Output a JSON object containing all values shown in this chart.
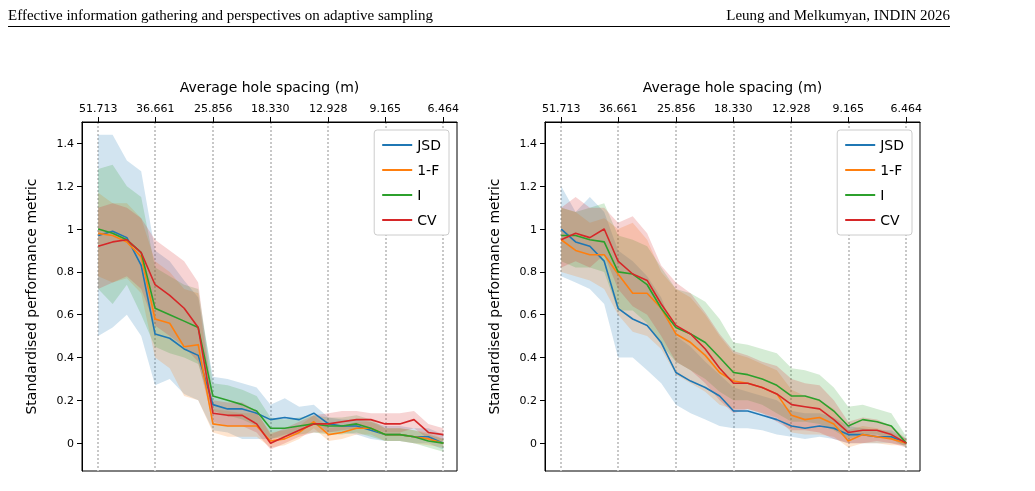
{
  "chart_data": [
    {
      "type": "line",
      "annotations": [
        "Effective information gathering and perspectives on adaptive sampling",
        "Leung and Melkumyan, INDIN 2026"
      ],
      "xlabel": "Average hole spacing (m)",
      "ylabel": "Standardised performance metric",
      "x": [
        51.7,
        47.4,
        43.5,
        39.9,
        36.7,
        33.6,
        30.8,
        28.3,
        25.9,
        23.7,
        21.7,
        19.9,
        18.3,
        16.8,
        15.4,
        14.1,
        12.9,
        11.9,
        10.9,
        10.0,
        9.17,
        8.4,
        7.71,
        7.07,
        6.46
      ],
      "xlim": [
        57,
        5.95
      ],
      "log": "x",
      "xticks": [
        51.713,
        36.661,
        25.856,
        {
          "value": 18.33,
          "label": "18.330"
        },
        12.928,
        9.165,
        6.464
      ],
      "ylim": [
        -0.13,
        1.5
      ],
      "yticks": [
        0,
        0.2,
        0.4,
        0.6,
        0.8,
        1,
        1.2,
        1.4
      ],
      "grid": "x",
      "legend": "top right",
      "marker": "none",
      "series": [
        {
          "name": "JSD",
          "color": "#1f77b4",
          "values": [
            0.97,
            0.99,
            0.96,
            0.83,
            0.51,
            0.49,
            0.44,
            0.41,
            0.18,
            0.16,
            0.16,
            0.14,
            0.11,
            0.12,
            0.11,
            0.14,
            0.09,
            0.08,
            0.08,
            0.06,
            0.04,
            0.04,
            0.03,
            0.03,
            0
          ],
          "lower": [
            0.5,
            0.54,
            0.6,
            0.5,
            0.27,
            0.3,
            0.23,
            0.2,
            0.06,
            0.05,
            0.02,
            0.02,
            0.02,
            0.04,
            0.05,
            0.1,
            0.05,
            0.05,
            0.04,
            0.02,
            0.01,
            0.01,
            0,
            0,
            -0.03
          ],
          "upper": [
            1.44,
            1.44,
            1.32,
            1.27,
            0.9,
            0.85,
            0.76,
            0.68,
            0.31,
            0.3,
            0.28,
            0.26,
            0.18,
            0.21,
            0.17,
            0.18,
            0.12,
            0.11,
            0.11,
            0.1,
            0.08,
            0.08,
            0.07,
            0.07,
            0.04
          ]
        },
        {
          "name": "1-F",
          "color": "#ff7f0e",
          "values": [
            0.98,
            0.97,
            0.94,
            0.87,
            0.58,
            0.56,
            0.45,
            0.46,
            0.09,
            0.08,
            0.08,
            0.08,
            0.01,
            0.02,
            0.05,
            0.1,
            0.04,
            0.05,
            0.07,
            0.07,
            0.04,
            0.04,
            0.03,
            0.02,
            0
          ],
          "lower": [
            0.78,
            0.75,
            0.77,
            0.7,
            0.4,
            0.35,
            0.22,
            0.2,
            0.05,
            0.03,
            0.03,
            0.03,
            -0.02,
            -0.01,
            0.02,
            0.07,
            0.01,
            0.02,
            0.04,
            0.04,
            0.01,
            0.01,
            0,
            -0.01,
            -0.02
          ],
          "upper": [
            1.17,
            1.12,
            1.12,
            1.05,
            0.85,
            0.8,
            0.72,
            0.7,
            0.16,
            0.15,
            0.14,
            0.14,
            0.05,
            0.06,
            0.08,
            0.13,
            0.07,
            0.08,
            0.1,
            0.1,
            0.07,
            0.07,
            0.06,
            0.05,
            0.02
          ]
        },
        {
          "name": "I",
          "color": "#2ca02c",
          "values": [
            1,
            0.98,
            0.95,
            0.89,
            0.63,
            0.6,
            0.57,
            0.54,
            0.22,
            0.2,
            0.18,
            0.15,
            0.07,
            0.07,
            0.08,
            0.09,
            0.08,
            0.08,
            0.09,
            0.07,
            0.04,
            0.04,
            0.03,
            0.01,
            0
          ],
          "lower": [
            0.72,
            0.65,
            0.74,
            0.6,
            0.45,
            0.42,
            0.4,
            0.37,
            0.15,
            0.13,
            0.11,
            0.08,
            0.02,
            0.03,
            0.04,
            0.05,
            0.04,
            0.04,
            0.05,
            0.03,
            0.01,
            0.01,
            0,
            -0.02,
            -0.04
          ],
          "upper": [
            1.28,
            1.3,
            1.2,
            1.15,
            0.82,
            0.78,
            0.74,
            0.72,
            0.28,
            0.27,
            0.25,
            0.22,
            0.12,
            0.11,
            0.12,
            0.13,
            0.12,
            0.12,
            0.13,
            0.11,
            0.07,
            0.07,
            0.06,
            0.04,
            0.02
          ]
        },
        {
          "name": "CV",
          "color": "#d62728",
          "values": [
            0.92,
            0.94,
            0.95,
            0.89,
            0.74,
            0.69,
            0.63,
            0.54,
            0.14,
            0.13,
            0.13,
            0.09,
            0,
            0.03,
            0.06,
            0.09,
            0.09,
            0.1,
            0.11,
            0.11,
            0.09,
            0.09,
            0.11,
            0.05,
            0.04
          ],
          "lower": [
            0.72,
            0.75,
            0.78,
            0.72,
            0.55,
            0.5,
            0.45,
            0.38,
            0.1,
            0.08,
            0.08,
            0.05,
            -0.03,
            0,
            0.03,
            0.05,
            0.05,
            0.06,
            0.07,
            0.07,
            0.05,
            0.05,
            0.07,
            0.02,
            0.01
          ],
          "upper": [
            1.1,
            1.12,
            1.1,
            1.05,
            0.95,
            0.9,
            0.85,
            0.75,
            0.2,
            0.19,
            0.19,
            0.15,
            0.04,
            0.07,
            0.1,
            0.13,
            0.14,
            0.15,
            0.15,
            0.14,
            0.14,
            0.14,
            0.15,
            0.09,
            0.07
          ]
        }
      ]
    },
    {
      "type": "line",
      "xlabel": "Average hole spacing (m)",
      "ylabel": "Standardised performance metric",
      "x": [
        51.7,
        47.4,
        43.5,
        39.9,
        36.7,
        33.6,
        30.8,
        28.3,
        25.9,
        23.7,
        21.7,
        19.9,
        18.3,
        16.8,
        15.4,
        14.1,
        12.9,
        11.9,
        10.9,
        10.0,
        9.17,
        8.4,
        7.71,
        7.07,
        6.46
      ],
      "xlim": [
        57,
        5.95
      ],
      "log": "x",
      "xticks": [
        51.713,
        36.661,
        25.856,
        {
          "value": 18.33,
          "label": "18.330"
        },
        12.928,
        9.165,
        6.464
      ],
      "ylim": [
        -0.13,
        1.5
      ],
      "yticks": [
        0,
        0.2,
        0.4,
        0.6,
        0.8,
        1,
        1.2,
        1.4
      ],
      "grid": "x",
      "legend": "top right",
      "marker": "none",
      "series": [
        {
          "name": "JSD",
          "color": "#1f77b4",
          "values": [
            1,
            0.94,
            0.92,
            0.85,
            0.63,
            0.58,
            0.55,
            0.47,
            0.33,
            0.29,
            0.26,
            0.22,
            0.15,
            0.15,
            0.13,
            0.11,
            0.08,
            0.07,
            0.08,
            0.07,
            0.04,
            0.04,
            0.03,
            0.03,
            0
          ],
          "lower": [
            0.78,
            0.75,
            0.72,
            0.65,
            0.4,
            0.4,
            0.34,
            0.28,
            0.18,
            0.14,
            0.11,
            0.08,
            0.07,
            0.07,
            0.06,
            0.04,
            0.03,
            0.02,
            0.03,
            0.02,
            0,
            0,
            0,
            0,
            -0.01
          ],
          "upper": [
            1.2,
            1.08,
            1.15,
            1.08,
            0.9,
            0.85,
            0.78,
            0.68,
            0.5,
            0.45,
            0.38,
            0.32,
            0.26,
            0.24,
            0.22,
            0.2,
            0.15,
            0.14,
            0.14,
            0.12,
            0.08,
            0.07,
            0.06,
            0.06,
            0.02
          ]
        },
        {
          "name": "1-F",
          "color": "#ff7f0e",
          "values": [
            0.95,
            0.9,
            0.88,
            0.88,
            0.79,
            0.7,
            0.7,
            0.63,
            0.51,
            0.47,
            0.41,
            0.33,
            0.29,
            0.28,
            0.26,
            0.23,
            0.13,
            0.11,
            0.12,
            0.09,
            0.01,
            0.04,
            0.03,
            0.02,
            0
          ],
          "lower": [
            0.8,
            0.78,
            0.76,
            0.72,
            0.6,
            0.52,
            0.5,
            0.44,
            0.32,
            0.28,
            0.24,
            0.18,
            0.16,
            0.16,
            0.14,
            0.12,
            0.05,
            0.04,
            0.04,
            0.03,
            -0.02,
            0,
            0,
            -0.01,
            -0.01
          ],
          "upper": [
            1.1,
            1.08,
            1.03,
            1.05,
            1,
            1.03,
            0.95,
            0.8,
            0.72,
            0.68,
            0.6,
            0.5,
            0.42,
            0.4,
            0.37,
            0.34,
            0.25,
            0.22,
            0.2,
            0.16,
            0.06,
            0.08,
            0.07,
            0.05,
            0.02
          ]
        },
        {
          "name": "I",
          "color": "#2ca02c",
          "values": [
            0.97,
            0.97,
            0.95,
            0.94,
            0.8,
            0.79,
            0.74,
            0.63,
            0.54,
            0.51,
            0.47,
            0.4,
            0.33,
            0.32,
            0.3,
            0.27,
            0.22,
            0.22,
            0.2,
            0.15,
            0.08,
            0.11,
            0.1,
            0.08,
            0
          ],
          "lower": [
            0.85,
            0.82,
            0.82,
            0.8,
            0.62,
            0.62,
            0.56,
            0.46,
            0.38,
            0.34,
            0.3,
            0.24,
            0.2,
            0.2,
            0.18,
            0.14,
            0.1,
            0.1,
            0.09,
            0.06,
            0.02,
            0.04,
            0.04,
            0.02,
            -0.02
          ],
          "upper": [
            1.1,
            1.08,
            1.1,
            1.12,
            0.97,
            0.95,
            0.92,
            0.82,
            0.72,
            0.7,
            0.66,
            0.58,
            0.47,
            0.46,
            0.44,
            0.42,
            0.35,
            0.34,
            0.32,
            0.26,
            0.17,
            0.18,
            0.16,
            0.14,
            0.03
          ]
        },
        {
          "name": "CV",
          "color": "#d62728",
          "values": [
            0.95,
            0.98,
            0.96,
            1,
            0.85,
            0.79,
            0.76,
            0.65,
            0.55,
            0.51,
            0.44,
            0.35,
            0.28,
            0.28,
            0.26,
            0.23,
            0.18,
            0.17,
            0.16,
            0.11,
            0.05,
            0.06,
            0.06,
            0.04,
            0
          ],
          "lower": [
            0.82,
            0.85,
            0.82,
            0.88,
            0.72,
            0.64,
            0.6,
            0.5,
            0.38,
            0.34,
            0.28,
            0.2,
            0.14,
            0.16,
            0.14,
            0.1,
            0.06,
            0.06,
            0.05,
            0.02,
            0,
            0,
            0.01,
            0,
            -0.02
          ],
          "upper": [
            1.1,
            1.15,
            1.1,
            1.1,
            1.03,
            1.06,
            0.98,
            0.83,
            0.75,
            0.7,
            0.61,
            0.51,
            0.43,
            0.41,
            0.38,
            0.36,
            0.3,
            0.28,
            0.27,
            0.2,
            0.1,
            0.12,
            0.11,
            0.08,
            0.02
          ]
        }
      ]
    }
  ]
}
